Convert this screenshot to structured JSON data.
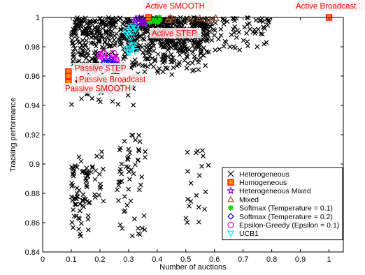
{
  "chart_data": {
    "type": "scatter",
    "xlabel": "Number of auctions",
    "ylabel": "Tracking performance",
    "xlim": [
      0,
      1.05
    ],
    "ylim": [
      0.84,
      1.0
    ],
    "xticks": [
      0,
      0.1,
      0.2,
      0.3,
      0.4,
      0.5,
      0.6,
      0.7,
      0.8,
      0.9,
      1
    ],
    "xtick_labels": [
      "0",
      "0.1",
      "0.2",
      "0.3",
      "0.4",
      "0.5",
      "0.6",
      "0.7",
      "0.8",
      "0.9",
      "1"
    ],
    "yticks": [
      0.84,
      0.86,
      0.88,
      0.9,
      0.92,
      0.94,
      0.96,
      0.98,
      1
    ],
    "ytick_labels": [
      "0.84",
      "0.86",
      "0.88",
      "0.9",
      "0.92",
      "0.94",
      "0.96",
      "0.98",
      "1"
    ],
    "legend_position": "bottom-right",
    "legend": [
      {
        "label": "Heterogeneous",
        "marker": "x",
        "color": "#000000"
      },
      {
        "label": "Homogeneous",
        "marker": "square",
        "color": "#ff0000",
        "fill": "#ff8c00"
      },
      {
        "label": "Heterogeneous Mixed",
        "marker": "star",
        "color": "#7b00d4"
      },
      {
        "label": "Mixed",
        "marker": "triangle-up",
        "color": "#a0522d"
      },
      {
        "label": "Softmax (Temperature = 0.1)",
        "marker": "asterisk",
        "color": "#00dd00"
      },
      {
        "label": "Softmax (Temperature = 0.2)",
        "marker": "diamond",
        "color": "#0000ff"
      },
      {
        "label": "Epsilon-Greedy (Epsilon = 0.1)",
        "marker": "circle",
        "color": "#ff00ff"
      },
      {
        "label": "UCB1",
        "marker": "triangle-down",
        "color": "#00e5ee"
      }
    ],
    "annotations": [
      {
        "text": "Active SMOOTH",
        "x": 0.37,
        "y": 1.0
      },
      {
        "text": "Active Broadcast",
        "x": 1.0,
        "y": 1.0
      },
      {
        "text": "Active STEP",
        "x": 0.37,
        "y": 0.99
      },
      {
        "text": "Passive STEP",
        "x": 0.09,
        "y": 0.963
      },
      {
        "text": "Passive Broadcast",
        "x": 0.13,
        "y": 0.957
      },
      {
        "text": "Passive SMOOTH",
        "x": 0.09,
        "y": 0.955
      }
    ],
    "homogeneous_points": [
      [
        0.09,
        0.963
      ],
      [
        0.09,
        0.96
      ],
      [
        0.09,
        0.956
      ],
      [
        0.13,
        0.957
      ],
      [
        0.37,
        1.0
      ],
      [
        1.0,
        1.0
      ]
    ],
    "heterogeneous_clusters": [
      {
        "x_range": [
          0.1,
          0.58
        ],
        "y_range": [
          0.96,
          1.0
        ],
        "n": 700
      },
      {
        "x_range": [
          0.1,
          0.32
        ],
        "y_range": [
          0.94,
          0.975
        ],
        "n": 60
      },
      {
        "x_range": [
          0.32,
          0.8
        ],
        "y_range": [
          0.975,
          1.0
        ],
        "n": 160
      },
      {
        "x_range": [
          0.1,
          0.16
        ],
        "y_range": [
          0.85,
          0.905
        ],
        "n": 60
      },
      {
        "x_range": [
          0.14,
          0.22
        ],
        "y_range": [
          0.87,
          0.91
        ],
        "n": 25
      },
      {
        "x_range": [
          0.26,
          0.36
        ],
        "y_range": [
          0.85,
          0.92
        ],
        "n": 55
      },
      {
        "x_range": [
          0.5,
          0.58
        ],
        "y_range": [
          0.86,
          0.91
        ],
        "n": 20
      }
    ]
  }
}
